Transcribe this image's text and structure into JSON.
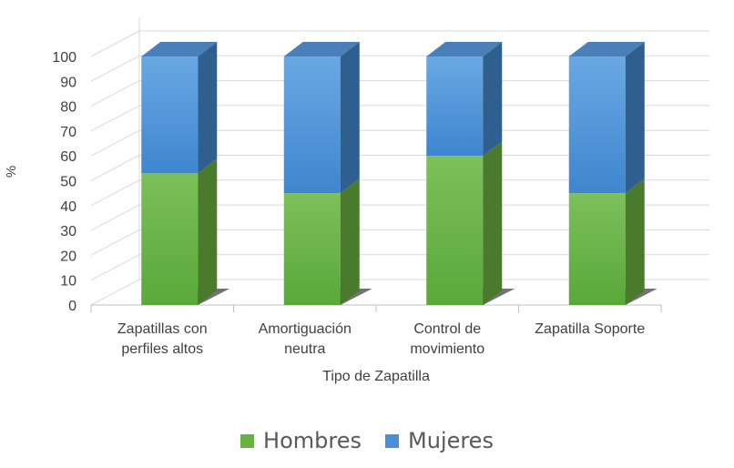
{
  "chart_data": {
    "type": "bar",
    "stacked": true,
    "three_d": true,
    "categories": [
      [
        "Zapatillas con",
        "perfiles altos"
      ],
      [
        "Amortiguación",
        "neutra"
      ],
      [
        "Control de",
        "movimiento"
      ],
      [
        "Zapatilla Soporte"
      ]
    ],
    "series": [
      {
        "name": "Hombres",
        "color": "#6bb042",
        "values": [
          53,
          45,
          60,
          45
        ]
      },
      {
        "name": "Mujeres",
        "color": "#4a90d9",
        "values": [
          47,
          55,
          40,
          55
        ]
      }
    ],
    "xlabel": "Tipo de Zapatilla",
    "ylabel": "%",
    "ylim": [
      0,
      100
    ],
    "yticks": [
      0,
      10,
      20,
      30,
      40,
      50,
      60,
      70,
      80,
      90,
      100
    ],
    "grid": true,
    "legend_position": "bottom"
  }
}
